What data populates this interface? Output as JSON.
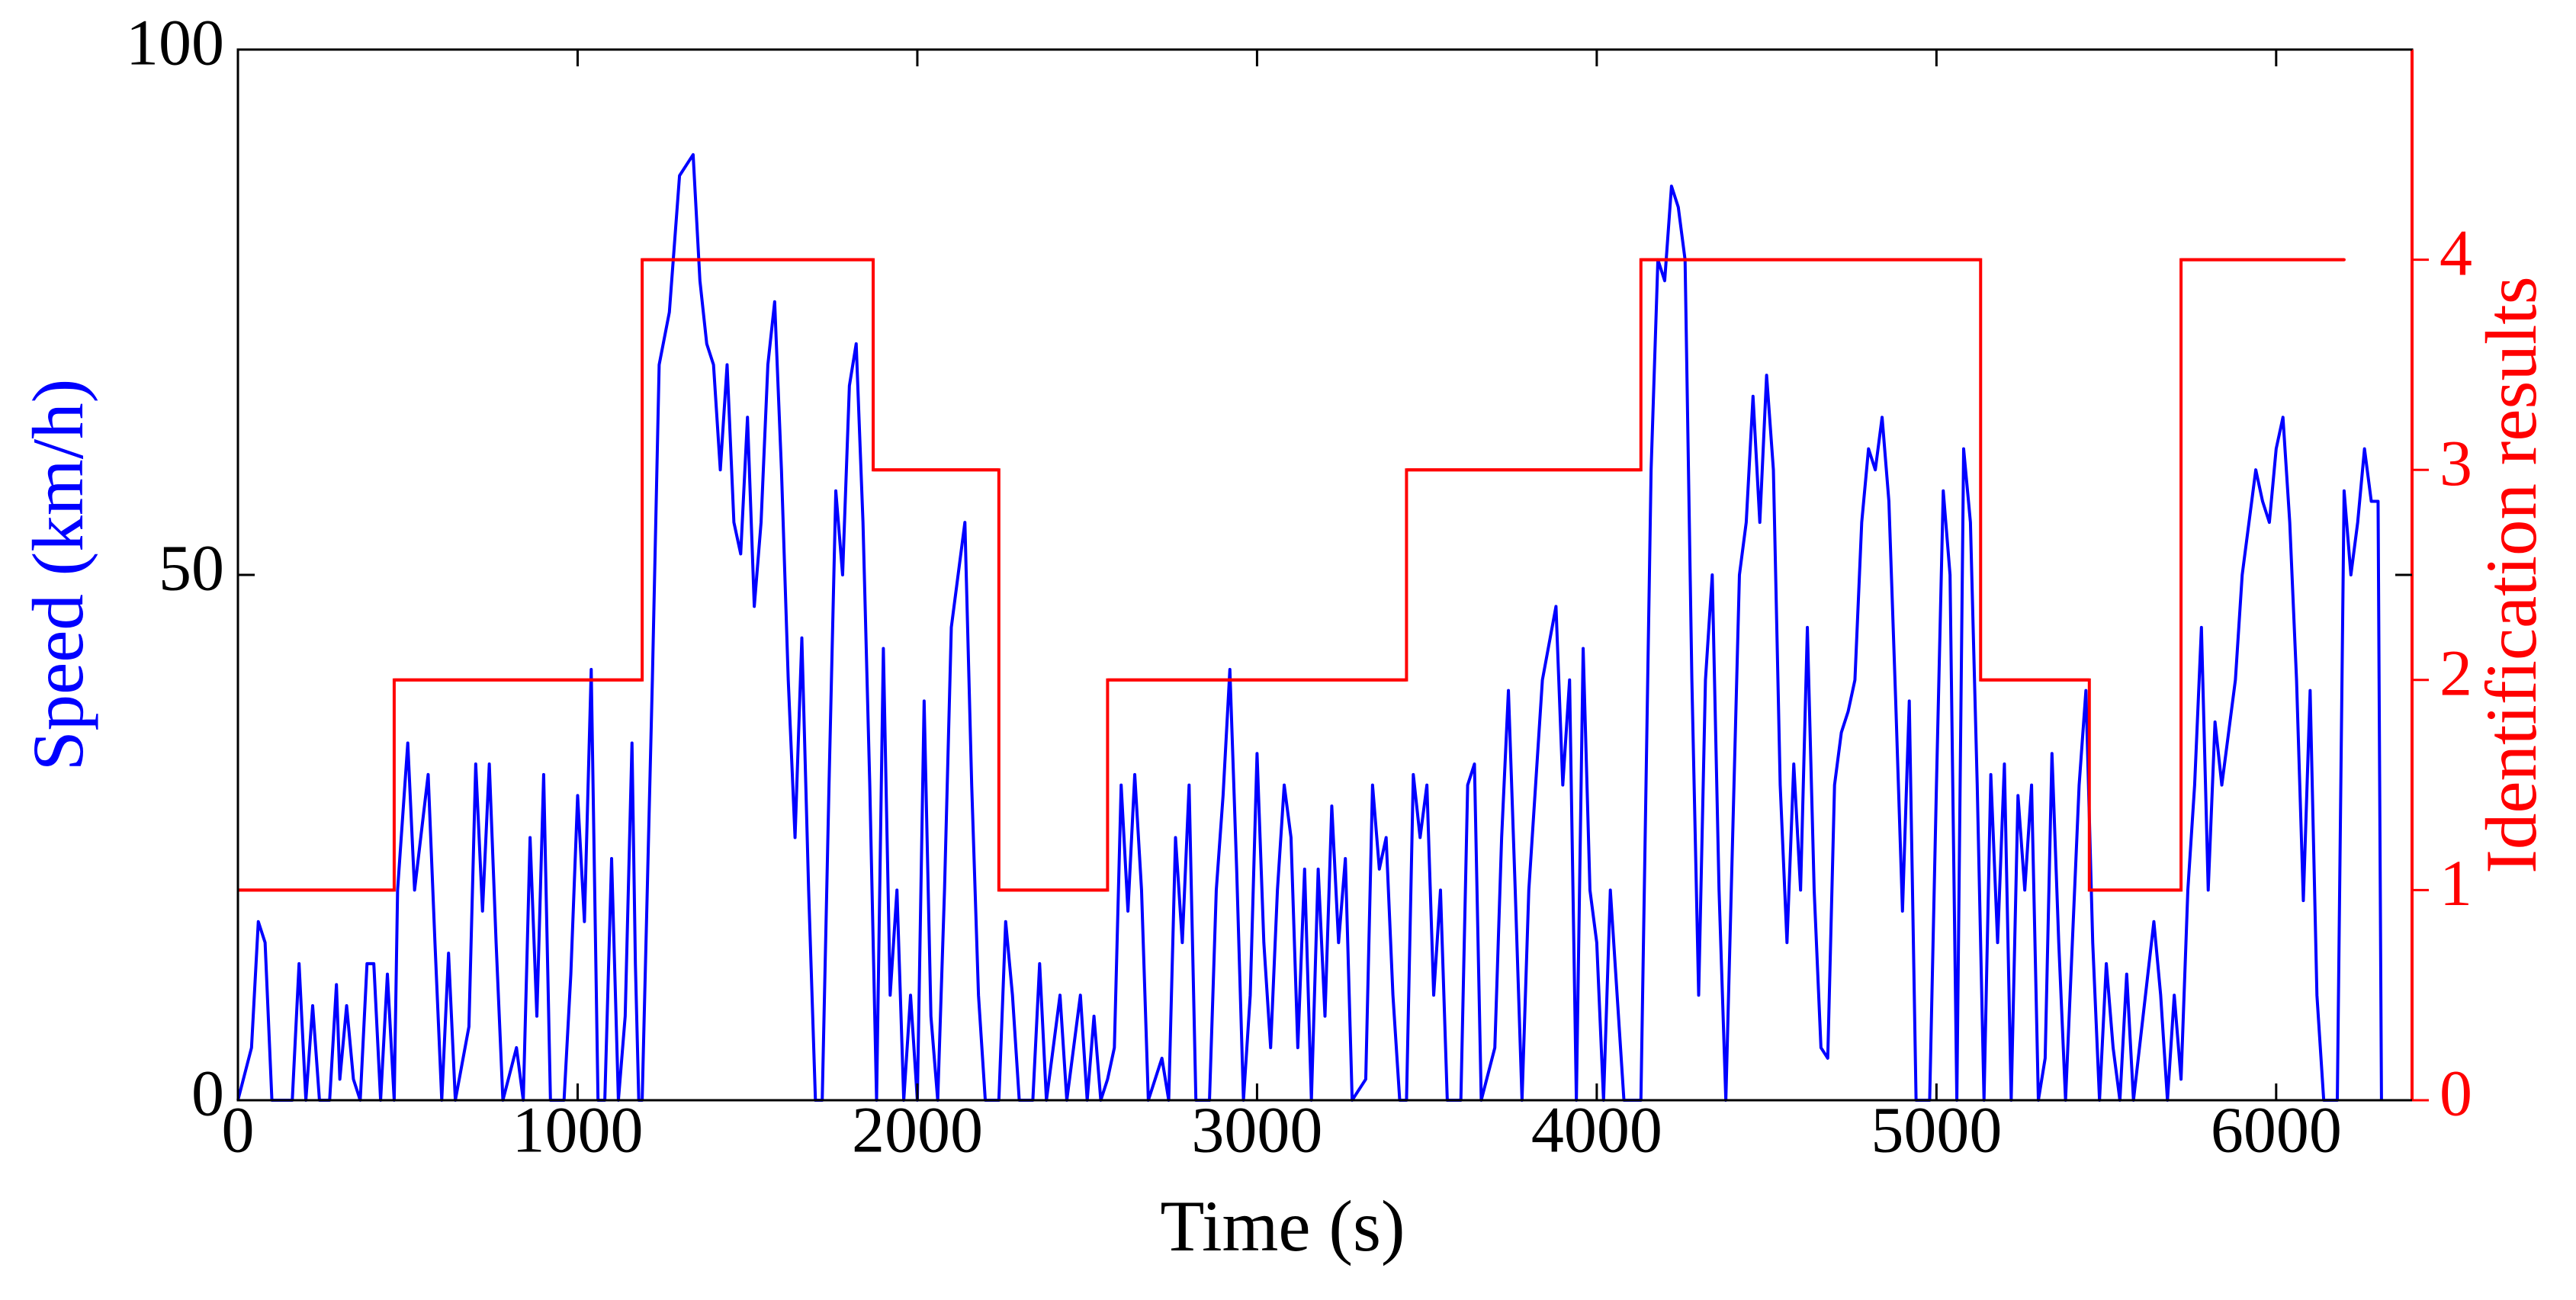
{
  "chart_data": {
    "type": "line",
    "xlabel": "Time (s)",
    "ylabel": "Speed (km/h)",
    "y2label": "Identification results",
    "xlim": [
      0,
      6400
    ],
    "xticks": [
      0,
      1000,
      2000,
      3000,
      4000,
      5000,
      6000
    ],
    "ylim": [
      0,
      100
    ],
    "yticks": [
      0,
      50,
      100
    ],
    "y2lim": [
      0,
      5
    ],
    "y2ticks": [
      0,
      1,
      2,
      3,
      4
    ],
    "series": [
      {
        "color": "#0000ff",
        "x": [
          0,
          40,
          60,
          80,
          100,
          160,
          180,
          200,
          220,
          240,
          270,
          290,
          300,
          320,
          340,
          360,
          380,
          400,
          420,
          440,
          460,
          470,
          500,
          520,
          560,
          580,
          600,
          620,
          640,
          680,
          700,
          720,
          740,
          760,
          780,
          820,
          840,
          860,
          880,
          900,
          920,
          960,
          980,
          1000,
          1020,
          1040,
          1060,
          1080,
          1100,
          1120,
          1140,
          1160,
          1170,
          1180,
          1190,
          1220,
          1240,
          1270,
          1300,
          1320,
          1340,
          1360,
          1380,
          1400,
          1420,
          1440,
          1460,
          1480,
          1500,
          1520,
          1540,
          1560,
          1580,
          1600,
          1620,
          1640,
          1660,
          1680,
          1700,
          1720,
          1740,
          1760,
          1780,
          1800,
          1820,
          1840,
          1860,
          1880,
          1900,
          1920,
          1940,
          1960,
          1980,
          2000,
          2020,
          2040,
          2060,
          2080,
          2100,
          2140,
          2160,
          2180,
          2200,
          2240,
          2260,
          2280,
          2300,
          2340,
          2360,
          2380,
          2420,
          2440,
          2480,
          2500,
          2520,
          2540,
          2560,
          2580,
          2600,
          2620,
          2640,
          2660,
          2680,
          2720,
          2740,
          2760,
          2780,
          2800,
          2820,
          2860,
          2880,
          2900,
          2920,
          2940,
          2960,
          2980,
          3000,
          3020,
          3040,
          3060,
          3080,
          3100,
          3120,
          3140,
          3160,
          3180,
          3200,
          3220,
          3240,
          3260,
          3280,
          3320,
          3340,
          3360,
          3380,
          3400,
          3420,
          3440,
          3460,
          3480,
          3500,
          3520,
          3540,
          3560,
          3600,
          3620,
          3640,
          3660,
          3700,
          3720,
          3740,
          3760,
          3780,
          3800,
          3840,
          3880,
          3900,
          3920,
          3940,
          3960,
          3980,
          4000,
          4020,
          4040,
          4060,
          4080,
          4130,
          4160,
          4180,
          4200,
          4220,
          4240,
          4260,
          4280,
          4300,
          4320,
          4340,
          4360,
          4380,
          4420,
          4440,
          4460,
          4480,
          4500,
          4520,
          4540,
          4560,
          4580,
          4600,
          4620,
          4640,
          4660,
          4680,
          4700,
          4720,
          4740,
          4760,
          4780,
          4800,
          4820,
          4840,
          4860,
          4880,
          4900,
          4920,
          4940,
          4980,
          5000,
          5020,
          5040,
          5060,
          5080,
          5100,
          5120,
          5140,
          5160,
          5180,
          5200,
          5220,
          5240,
          5260,
          5280,
          5300,
          5320,
          5340,
          5360,
          5380,
          5420,
          5440,
          5460,
          5480,
          5500,
          5520,
          5540,
          5560,
          5580,
          5640,
          5660,
          5680,
          5700,
          5720,
          5740,
          5760,
          5780,
          5800,
          5820,
          5840,
          5860,
          5880,
          5900,
          5920,
          5940,
          5960,
          5980,
          6000,
          6020,
          6040,
          6060,
          6080,
          6100,
          6120,
          6140,
          6180,
          6200,
          6220,
          6240,
          6260,
          6280,
          6300,
          6310
        ],
        "values": [
          0,
          5,
          17,
          15,
          0,
          0,
          13,
          0,
          9,
          0,
          0,
          11,
          2,
          9,
          2,
          0,
          13,
          13,
          0,
          12,
          0,
          20,
          34,
          20,
          31,
          15,
          0,
          14,
          0,
          7,
          32,
          18,
          32,
          15,
          0,
          5,
          0,
          25,
          8,
          31,
          0,
          0,
          12,
          29,
          17,
          41,
          0,
          0,
          23,
          0,
          8,
          34,
          13,
          0,
          0,
          40,
          70,
          75,
          88,
          89,
          90,
          78,
          72,
          70,
          60,
          70,
          55,
          52,
          65,
          47,
          55,
          70,
          76,
          60,
          40,
          25,
          44,
          20,
          0,
          0,
          30,
          58,
          50,
          68,
          72,
          55,
          30,
          0,
          43,
          10,
          20,
          0,
          10,
          0,
          38,
          8,
          0,
          20,
          45,
          55,
          30,
          10,
          0,
          0,
          17,
          10,
          0,
          0,
          13,
          0,
          10,
          0,
          10,
          0,
          8,
          0,
          2,
          5,
          30,
          18,
          31,
          20,
          0,
          4,
          0,
          25,
          15,
          30,
          0,
          0,
          20,
          29,
          41,
          22,
          0,
          10,
          33,
          15,
          5,
          20,
          30,
          25,
          5,
          22,
          0,
          22,
          8,
          28,
          15,
          23,
          0,
          2,
          30,
          22,
          25,
          10,
          0,
          0,
          31,
          25,
          30,
          10,
          20,
          0,
          0,
          30,
          32,
          0,
          5,
          25,
          39,
          20,
          0,
          20,
          40,
          47,
          30,
          40,
          0,
          43,
          20,
          15,
          0,
          20,
          10,
          0,
          0,
          60,
          80,
          78,
          87,
          85,
          80,
          40,
          10,
          40,
          50,
          20,
          0,
          50,
          55,
          67,
          55,
          69,
          60,
          30,
          15,
          32,
          20,
          45,
          20,
          5,
          4,
          30,
          35,
          37,
          40,
          55,
          62,
          60,
          65,
          57,
          38,
          18,
          38,
          0,
          0,
          30,
          58,
          50,
          0,
          62,
          55,
          30,
          0,
          31,
          15,
          32,
          0,
          29,
          20,
          30,
          0,
          4,
          33,
          15,
          0,
          30,
          39,
          15,
          0,
          13,
          5,
          0,
          12,
          0,
          17,
          10,
          0,
          10,
          2,
          20,
          30,
          45,
          20,
          36,
          30,
          35,
          40,
          50,
          55,
          60,
          57,
          55,
          62,
          65,
          55,
          40,
          19,
          39,
          10,
          0,
          0,
          58,
          50,
          55,
          62,
          57,
          57,
          0
        ]
      },
      {
        "color": "#ff0000",
        "axis": "y2",
        "drawstyle": "steps-post",
        "x": [
          0,
          460,
          1190,
          1870,
          2240,
          2560,
          3440,
          4130,
          5130,
          5450,
          5720,
          6200
        ],
        "values": [
          1,
          2,
          4,
          3,
          1,
          2,
          3,
          4,
          2,
          1,
          4,
          4
        ]
      }
    ]
  }
}
